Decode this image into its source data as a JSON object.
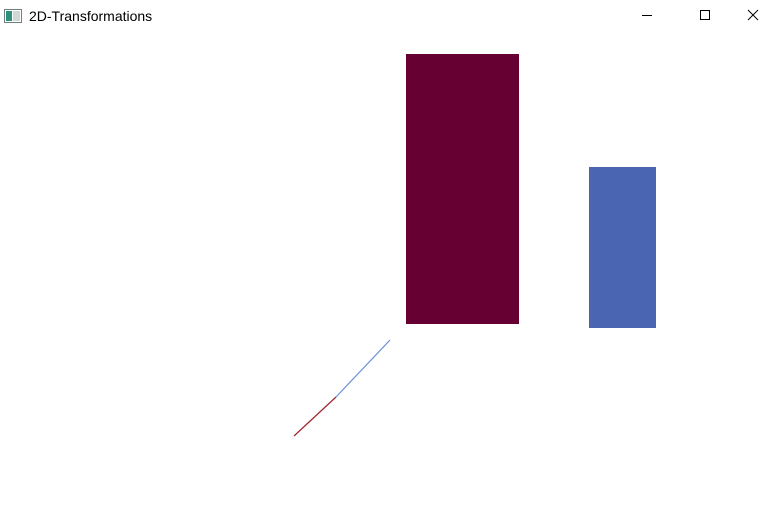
{
  "window": {
    "title": "2D-Transformations",
    "icon": "app-window-icon",
    "controls": {
      "minimize_icon": "minimize-icon",
      "maximize_icon": "maximize-icon",
      "close_icon": "close-icon"
    }
  },
  "scene": {
    "shapes": [
      {
        "kind": "rectangle",
        "name": "maroon-rectangle",
        "color": "#660033"
      },
      {
        "kind": "rectangle",
        "name": "blue-rectangle",
        "color": "#4a66b2"
      },
      {
        "kind": "line",
        "name": "line-segment-red",
        "color": "#a0242e"
      },
      {
        "kind": "line",
        "name": "line-segment-blue",
        "color": "#6b8fdc"
      }
    ]
  }
}
